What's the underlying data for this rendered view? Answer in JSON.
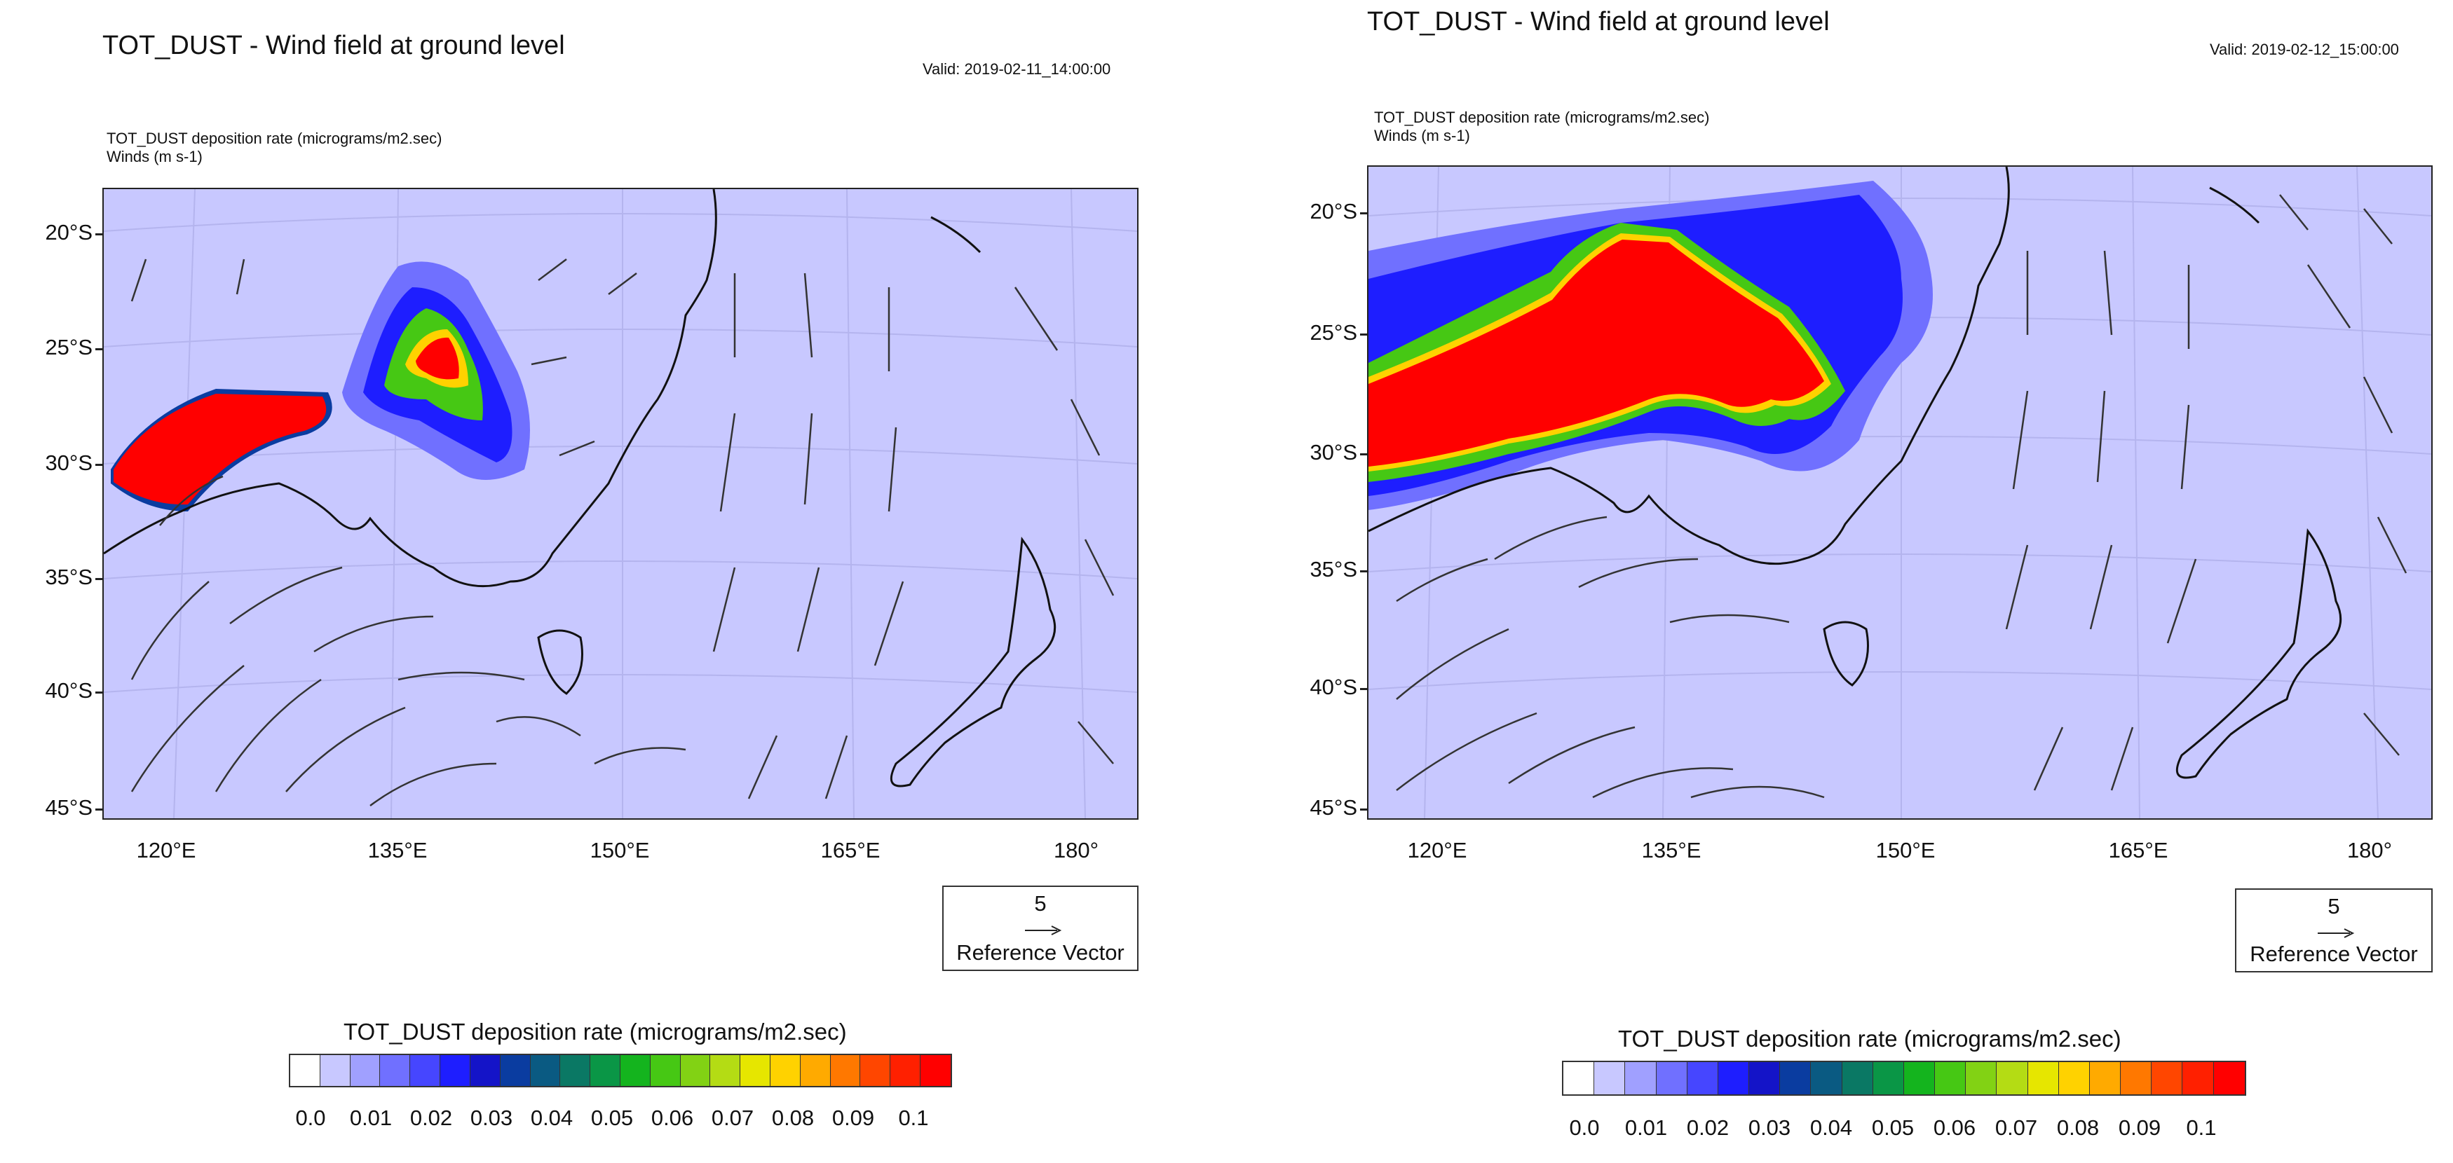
{
  "colorbar_palette": [
    "#ffffff",
    "#c8c8ff",
    "#a0a0ff",
    "#7070ff",
    "#4646ff",
    "#1e1eff",
    "#1414c8",
    "#0a3ca0",
    "#0a5a82",
    "#0a7864",
    "#0a9646",
    "#14b41e",
    "#46c814",
    "#82d214",
    "#b4dc14",
    "#e6e600",
    "#ffd200",
    "#ffaa00",
    "#ff7800",
    "#ff4600",
    "#ff2000",
    "#ff0000"
  ],
  "land_bg": "#c8c8ff",
  "panels": [
    {
      "title": "TOT_DUST - Wind field at ground level",
      "valid": "Valid: 2019-02-11_14:00:00",
      "subtitle1": "TOT_DUST deposition rate   (micrograms/m2.sec)",
      "subtitle2": "Winds   (m s-1)",
      "lat_labels": [
        "20°S",
        "25°S",
        "30°S",
        "35°S",
        "40°S",
        "45°S"
      ],
      "lon_labels": [
        "120°E",
        "135°E",
        "150°E",
        "165°E",
        "180°"
      ],
      "ref_vector": {
        "value": "5",
        "caption": "Reference Vector"
      },
      "colorbar_title": "TOT_DUST deposition rate  (micrograms/m2.sec)",
      "colorbar_labels": [
        "0.0",
        "0.01",
        "0.02",
        "0.03",
        "0.04",
        "0.05",
        "0.06",
        "0.07",
        "0.08",
        "0.09",
        "0.1"
      ]
    },
    {
      "title": "TOT_DUST - Wind field at ground level",
      "valid": "Valid: 2019-02-12_15:00:00",
      "subtitle1": "TOT_DUST deposition rate   (micrograms/m2.sec)",
      "subtitle2": "Winds   (m s-1)",
      "lat_labels": [
        "20°S",
        "25°S",
        "30°S",
        "35°S",
        "40°S",
        "45°S"
      ],
      "lon_labels": [
        "120°E",
        "135°E",
        "150°E",
        "165°E",
        "180°"
      ],
      "ref_vector": {
        "value": "5",
        "caption": "Reference Vector"
      },
      "colorbar_title": "TOT_DUST deposition rate  (micrograms/m2.sec)",
      "colorbar_labels": [
        "0.0",
        "0.01",
        "0.02",
        "0.03",
        "0.04",
        "0.05",
        "0.06",
        "0.07",
        "0.08",
        "0.09",
        "0.1"
      ]
    }
  ]
}
